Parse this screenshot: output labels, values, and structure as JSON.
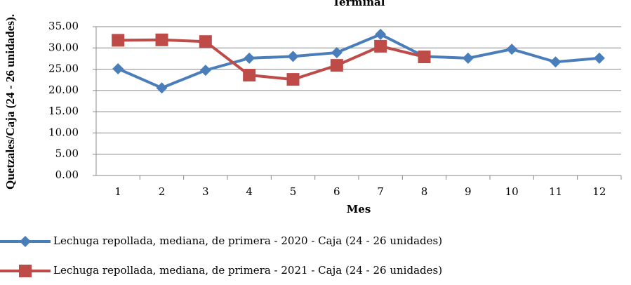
{
  "chart_data": {
    "type": "line",
    "title": "Terminal",
    "x_label": "Mes",
    "y_label": "Quetzales/Caja (24 - 26 unidades).",
    "categories": [
      "1",
      "2",
      "3",
      "4",
      "5",
      "6",
      "7",
      "8",
      "9",
      "10",
      "11",
      "12"
    ],
    "series": [
      {
        "name": "Lechuga repollada, mediana, de primera - 2020 - Caja (24 - 26 unidades)",
        "color": "#4a7ebb",
        "marker": "diamond",
        "values": [
          25.1,
          20.6,
          24.75,
          27.6,
          28.0,
          28.9,
          33.2,
          28.0,
          27.6,
          29.7,
          26.7,
          27.6
        ]
      },
      {
        "name": "Lechuga repollada, mediana, de primera - 2021 - Caja (24 - 26 unidades)",
        "color": "#be4b48",
        "marker": "square",
        "values": [
          31.8,
          31.9,
          31.5,
          23.6,
          22.6,
          25.9,
          30.4,
          27.9,
          null,
          null,
          null,
          null
        ]
      }
    ],
    "ylim": [
      0,
      35
    ],
    "yticks": [
      {
        "value": 0,
        "label": "0.00"
      },
      {
        "value": 5,
        "label": "5.00"
      },
      {
        "value": 10,
        "label": "10.00"
      },
      {
        "value": 15,
        "label": "15.00"
      },
      {
        "value": 20,
        "label": "20.00"
      },
      {
        "value": 25,
        "label": "25.00"
      },
      {
        "value": 30,
        "label": "30.00"
      },
      {
        "value": 35,
        "label": "35.00"
      }
    ],
    "grid": true
  }
}
